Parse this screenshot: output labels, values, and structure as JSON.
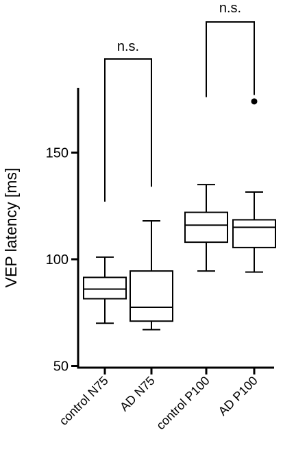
{
  "chart_data": {
    "type": "boxplot",
    "ylabel": "VEP latency [ms]",
    "xlabel": "",
    "ylim": [
      50,
      180
    ],
    "yticks": [
      50,
      100,
      150
    ],
    "grid": false,
    "categories": [
      "control N75",
      "AD N75",
      "control P100",
      "AD P100"
    ],
    "boxes": [
      {
        "category": "control N75",
        "whisker_low": 70,
        "q1": 81.5,
        "median": 86,
        "q3": 91.5,
        "whisker_high": 101,
        "outliers": []
      },
      {
        "category": "AD N75",
        "whisker_low": 67,
        "q1": 71,
        "median": 77.5,
        "q3": 94.5,
        "whisker_high": 118,
        "outliers": []
      },
      {
        "category": "control P100",
        "whisker_low": 94.5,
        "q1": 108,
        "median": 116,
        "q3": 122,
        "whisker_high": 135,
        "outliers": []
      },
      {
        "category": "AD P100",
        "whisker_low": 94,
        "q1": 105.5,
        "median": 115,
        "q3": 118.5,
        "whisker_high": 131.5,
        "outliers": [
          174
        ]
      }
    ],
    "annotations": [
      {
        "label": "n.s.",
        "left": "control N75",
        "right": "AD N75",
        "left_end": 127,
        "right_end": 134
      },
      {
        "label": "n.s.",
        "left": "control P100",
        "right": "AD P100",
        "left_end": 176,
        "right_end": 177
      }
    ]
  }
}
